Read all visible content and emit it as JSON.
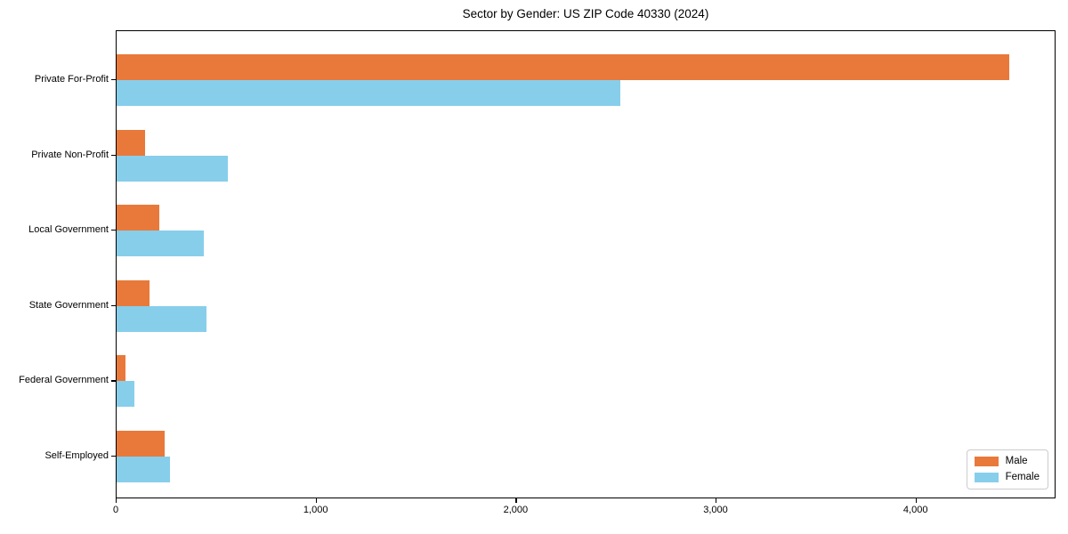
{
  "chart_data": {
    "type": "bar",
    "orientation": "horizontal",
    "title": "Sector by Gender: US ZIP Code 40330 (2024)",
    "categories": [
      "Private For-Profit",
      "Private Non-Profit",
      "Local Government",
      "State Government",
      "Federal Government",
      "Self-Employed"
    ],
    "series": [
      {
        "name": "Male",
        "color": "#e8793b",
        "values": [
          4465,
          140,
          215,
          165,
          45,
          240
        ]
      },
      {
        "name": "Female",
        "color": "#87ceeb",
        "values": [
          2520,
          555,
          435,
          450,
          90,
          265
        ]
      }
    ],
    "xlim": [
      0,
      4700
    ],
    "xticks": [
      0,
      1000,
      2000,
      3000,
      4000
    ],
    "xtick_labels": [
      "0",
      "1,000",
      "2,000",
      "3,000",
      "4,000"
    ],
    "xlabel": "",
    "ylabel": "",
    "grid": false,
    "legend_position": "lower right",
    "plot_border": "#000000",
    "background": "#ffffff"
  }
}
